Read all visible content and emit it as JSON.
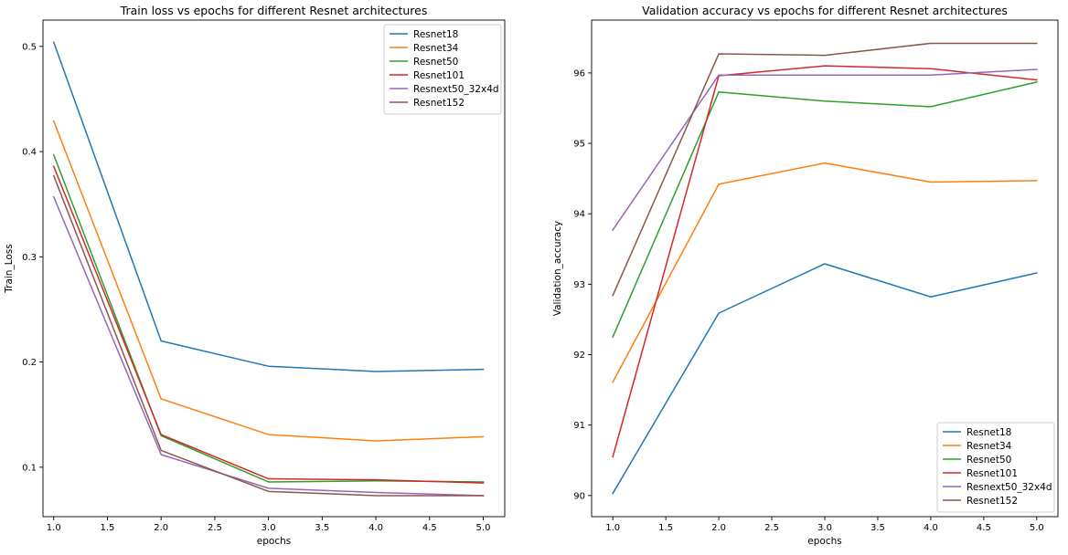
{
  "chart_data": [
    {
      "type": "line",
      "title": "Train loss vs epochs for different Resnet architectures",
      "xlabel": "epochs",
      "ylabel": "Train_Loss",
      "x": [
        1.0,
        2.0,
        3.0,
        4.0,
        5.0
      ],
      "xlim": [
        0.9,
        5.2
      ],
      "ylim": [
        0.053,
        0.525
      ],
      "xticks": [
        1.0,
        1.5,
        2.0,
        2.5,
        3.0,
        3.5,
        4.0,
        4.5,
        5.0
      ],
      "xtick_labels": [
        "1.0",
        "1.5",
        "2.0",
        "2.5",
        "3.0",
        "3.5",
        "4.0",
        "4.5",
        "5.0"
      ],
      "yticks": [
        0.1,
        0.2,
        0.3,
        0.4,
        0.5
      ],
      "ytick_labels": [
        "0.1",
        "0.2",
        "0.3",
        "0.4",
        "0.5"
      ],
      "grid": false,
      "legend_position": "top-right",
      "series": [
        {
          "name": "Resnet18",
          "color": "#1f77b4",
          "values": [
            0.504,
            0.22,
            0.196,
            0.191,
            0.193
          ]
        },
        {
          "name": "Resnet34",
          "color": "#ff7f0e",
          "values": [
            0.429,
            0.165,
            0.131,
            0.125,
            0.129
          ]
        },
        {
          "name": "Resnet50",
          "color": "#2ca02c",
          "values": [
            0.397,
            0.13,
            0.086,
            0.087,
            0.086
          ]
        },
        {
          "name": "Resnet101",
          "color": "#d62728",
          "values": [
            0.386,
            0.131,
            0.089,
            0.088,
            0.085
          ]
        },
        {
          "name": "Resnext50_32x4d",
          "color": "#9467bd",
          "values": [
            0.357,
            0.112,
            0.08,
            0.076,
            0.073
          ]
        },
        {
          "name": "Resnet152",
          "color": "#8c564b",
          "values": [
            0.377,
            0.116,
            0.077,
            0.073,
            0.073
          ]
        }
      ]
    },
    {
      "type": "line",
      "title": "Validation accuracy vs epochs for different Resnet architectures",
      "xlabel": "epochs",
      "ylabel": "Validation_accuracy",
      "x": [
        1.0,
        2.0,
        3.0,
        4.0,
        5.0
      ],
      "xlim": [
        0.8,
        5.2
      ],
      "ylim": [
        89.7,
        96.75
      ],
      "xticks": [
        1.0,
        1.5,
        2.0,
        2.5,
        3.0,
        3.5,
        4.0,
        4.5,
        5.0
      ],
      "xtick_labels": [
        "1.0",
        "1.5",
        "2.0",
        "2.5",
        "3.0",
        "3.5",
        "4.0",
        "4.5",
        "5.0"
      ],
      "yticks": [
        90,
        91,
        92,
        93,
        94,
        95,
        96
      ],
      "ytick_labels": [
        "90",
        "91",
        "92",
        "93",
        "94",
        "95",
        "96"
      ],
      "grid": false,
      "legend_position": "bottom-right",
      "series": [
        {
          "name": "Resnet18",
          "color": "#1f77b4",
          "values": [
            90.03,
            92.59,
            93.29,
            92.82,
            93.16
          ]
        },
        {
          "name": "Resnet34",
          "color": "#ff7f0e",
          "values": [
            91.61,
            94.42,
            94.72,
            94.45,
            94.47
          ]
        },
        {
          "name": "Resnet50",
          "color": "#2ca02c",
          "values": [
            92.25,
            95.73,
            95.6,
            95.52,
            95.87
          ]
        },
        {
          "name": "Resnet101",
          "color": "#d62728",
          "values": [
            90.55,
            95.96,
            96.1,
            96.06,
            95.9
          ]
        },
        {
          "name": "Resnext50_32x4d",
          "color": "#9467bd",
          "values": [
            93.77,
            95.97,
            95.97,
            95.97,
            96.05
          ]
        },
        {
          "name": "Resnet152",
          "color": "#8c564b",
          "values": [
            92.84,
            96.27,
            96.25,
            96.42,
            96.42
          ]
        }
      ]
    }
  ]
}
